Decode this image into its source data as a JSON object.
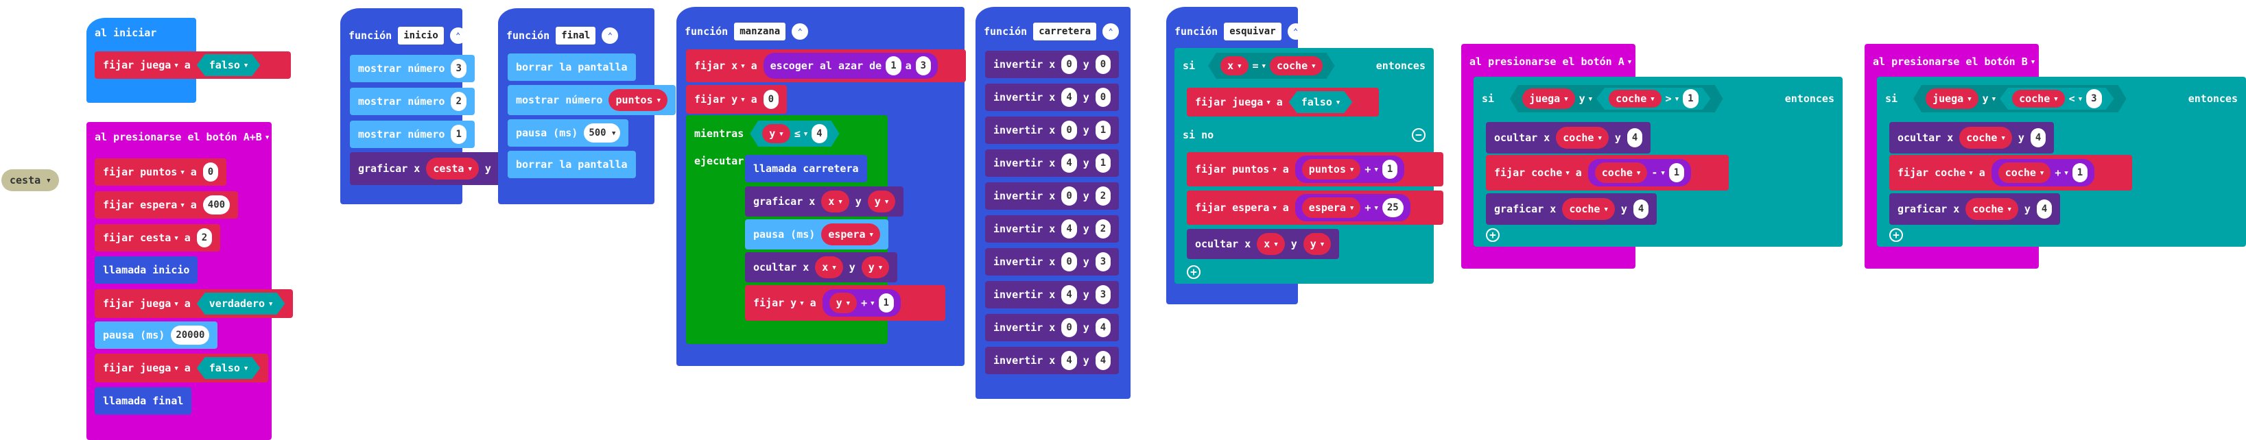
{
  "colors": {
    "variables": "#e1264b",
    "basic": "#1e90ff",
    "functions": "#3455db",
    "led": "#5c2d91",
    "math": "#8f1cd1",
    "loops": "#00a00f",
    "logic": "#00a4a6",
    "input": "#d400d4"
  },
  "floating": {
    "cesta": "cesta"
  },
  "on_start": {
    "hat": "al iniciar",
    "set_word": "fijar",
    "var": "juega",
    "to_word": "a",
    "value": "falso"
  },
  "button_ab": {
    "hat": "al presionarse el botón",
    "button": "A+B",
    "rows": [
      {
        "var": "puntos",
        "value": "0"
      },
      {
        "var": "espera",
        "value": "400"
      },
      {
        "var": "cesta",
        "value": "2"
      }
    ],
    "call1": "llamada inicio",
    "set_true_var": "juega",
    "set_true_value": "verdadero",
    "pause_label": "pausa (ms)",
    "pause_value": "20000",
    "set_false_var": "juega",
    "set_false_value": "falso",
    "call2": "llamada final"
  },
  "fn_inicio": {
    "keyword": "función",
    "name": "inicio",
    "show1_label": "mostrar número",
    "show1": "3",
    "show2_label": "mostrar número",
    "show2": "2",
    "show3_label": "mostrar número",
    "show3": "1",
    "plot_label": "graficar x",
    "plot_x": "cesta",
    "plot_y_label": "y"
  },
  "fn_final": {
    "keyword": "función",
    "name": "final",
    "clear1": "borrar la pantalla",
    "show_label": "mostrar número",
    "show_var": "puntos",
    "pause_label": "pausa (ms)",
    "pause_value": "500",
    "clear2": "borrar la pantalla"
  },
  "fn_manzana": {
    "keyword": "función",
    "name": "manzana",
    "set_x_var": "x",
    "random_label": "escoger al azar de",
    "random_from": "1",
    "random_and": "a",
    "random_to": "3",
    "set_y_var": "y",
    "set_y_value": "0",
    "while_label": "mientras",
    "while_var": "y",
    "while_op": "≤",
    "while_value": "4",
    "do_label": "ejecutar",
    "call_label": "llamada carretera",
    "plot_label": "graficar x",
    "plot_x": "x",
    "plot_y_label": "y",
    "plot_y": "y",
    "pause_label": "pausa (ms)",
    "pause_var": "espera",
    "unplot_label": "ocultar x",
    "unplot_x": "x",
    "unplot_y_label": "y",
    "unplot_y": "y",
    "set_label": "fijar",
    "set_var": "y",
    "set_to": "a",
    "add_var": "y",
    "add_op": "+",
    "add_value": "1"
  },
  "fn_carretera": {
    "keyword": "función",
    "name": "carretera",
    "toggle_label": "invertir x",
    "y_label": "y",
    "rows": [
      {
        "x": "0",
        "y": "0"
      },
      {
        "x": "4",
        "y": "0"
      },
      {
        "x": "0",
        "y": "1"
      },
      {
        "x": "4",
        "y": "1"
      },
      {
        "x": "0",
        "y": "2"
      },
      {
        "x": "4",
        "y": "2"
      },
      {
        "x": "0",
        "y": "3"
      },
      {
        "x": "4",
        "y": "3"
      },
      {
        "x": "0",
        "y": "4"
      },
      {
        "x": "4",
        "y": "4"
      }
    ]
  },
  "fn_esquivar": {
    "keyword": "función",
    "name": "esquivar",
    "if_label": "si",
    "cond_left": "x",
    "cond_op": "=",
    "cond_right": "coche",
    "then_label": "entonces",
    "set_label": "fijar",
    "set_var": "juega",
    "set_to": "a",
    "set_value": "falso",
    "else_label": "si no",
    "points_var": "puntos",
    "points_add_var": "puntos",
    "points_op": "+",
    "points_value": "1",
    "wait_var": "espera",
    "wait_add_var": "espera",
    "wait_op": "+",
    "wait_value": "25",
    "unplot_label": "ocultar x",
    "unplot_x": "x",
    "unplot_y_label": "y",
    "unplot_y": "y"
  },
  "button_a": {
    "hat": "al presionarse el botón",
    "button": "A",
    "if_label": "si",
    "cond_var": "juega",
    "and_op": "y",
    "cmp_var": "coche",
    "cmp_op": ">",
    "cmp_value": "1",
    "then_label": "entonces",
    "unplot_label": "ocultar x",
    "unplot_var": "coche",
    "unplot_y_label": "y",
    "unplot_y": "4",
    "set_label": "fijar",
    "set_var": "coche",
    "set_to": "a",
    "math_var": "coche",
    "math_op": "-",
    "math_value": "1",
    "plot_label": "graficar x",
    "plot_var": "coche",
    "plot_y_label": "y",
    "plot_y": "4"
  },
  "button_b": {
    "hat": "al presionarse el botón",
    "button": "B",
    "if_label": "si",
    "cond_var": "juega",
    "and_op": "y",
    "cmp_var": "coche",
    "cmp_op": "<",
    "cmp_value": "3",
    "then_label": "entonces",
    "unplot_label": "ocultar x",
    "unplot_var": "coche",
    "unplot_y_label": "y",
    "unplot_y": "4",
    "set_label": "fijar",
    "set_var": "coche",
    "set_to": "a",
    "math_var": "coche",
    "math_op": "+",
    "math_value": "1",
    "plot_label": "graficar x",
    "plot_var": "coche",
    "plot_y_label": "y",
    "plot_y": "4"
  }
}
